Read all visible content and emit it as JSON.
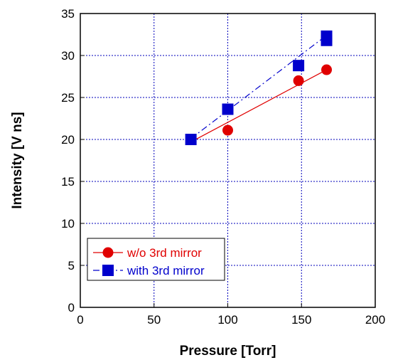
{
  "chart_data": {
    "type": "line",
    "title": "",
    "xlabel": "Pressure [Torr]",
    "ylabel": "Intensity [V ns]",
    "xlim": [
      0,
      200
    ],
    "ylim": [
      0,
      35
    ],
    "x_ticks": [
      0,
      50,
      100,
      150,
      200
    ],
    "y_ticks": [
      0,
      5,
      10,
      15,
      20,
      25,
      30,
      35
    ],
    "grid": true,
    "legend_position": "bottom-left",
    "series": [
      {
        "name": "w/o 3rd mirror",
        "color": "#e00000",
        "marker": "circle",
        "line_style": "solid",
        "points": [
          [
            75,
            20.0
          ],
          [
            100,
            21.1
          ],
          [
            148,
            27.0
          ],
          [
            167,
            28.3
          ]
        ],
        "fit": [
          [
            75,
            19.7
          ],
          [
            167,
            28.3
          ]
        ]
      },
      {
        "name": "with 3rd mirror",
        "color": "#0000cc",
        "marker": "square",
        "line_style": "dash-dot",
        "points": [
          [
            75,
            20.0
          ],
          [
            100,
            23.6
          ],
          [
            148,
            28.8
          ],
          [
            167,
            32.3
          ],
          [
            167,
            31.8
          ]
        ],
        "fit": [
          [
            75,
            20.1
          ],
          [
            167,
            32.4
          ]
        ]
      }
    ]
  }
}
